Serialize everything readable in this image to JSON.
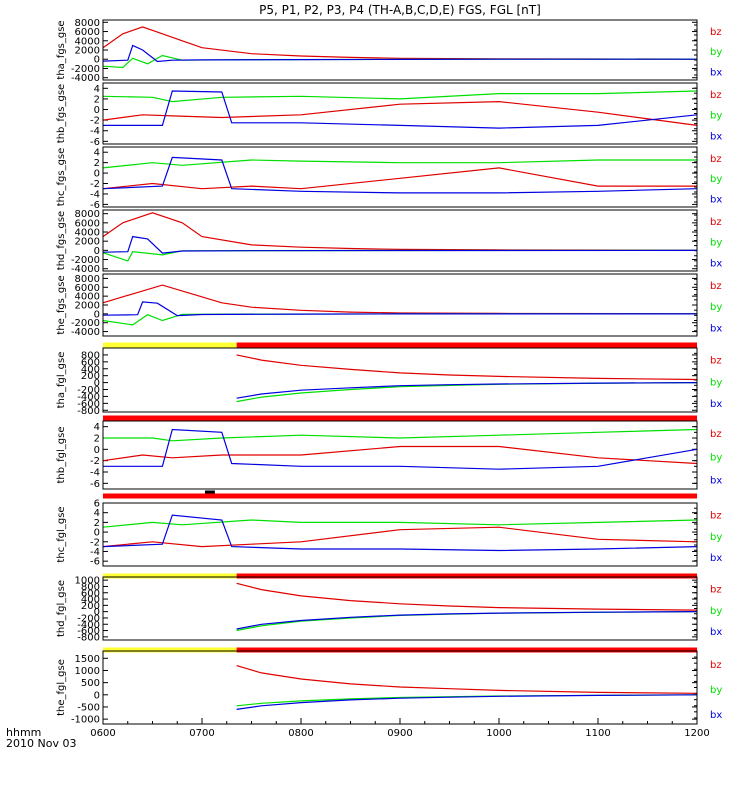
{
  "title": "P5, P1, P2, P3, P4 (TH-A,B,C,D,E) FGS, FGL [nT]",
  "x_axis": {
    "label_line1": "hhmm",
    "label_line2": "2010 Nov 03",
    "tick_labels": [
      "0600",
      "0700",
      "0800",
      "0900",
      "1000",
      "1100",
      "1200"
    ]
  },
  "colors": {
    "bz": "#e00000",
    "by": "#00e000",
    "bx": "#0000e0",
    "bar_yellow": "#ffff33",
    "bar_red": "#ff0000",
    "bar_black": "#000000"
  },
  "chart_data": [
    {
      "type": "line",
      "ylabel": "tha_fgs_gse",
      "ylim": [
        -4500,
        8500
      ],
      "yticks": [
        -4000,
        -2000,
        0,
        2000,
        4000,
        6000,
        8000
      ],
      "ytick_labels": [
        "-4000",
        "-2000",
        "0",
        "2000",
        "4000",
        "6000",
        "8000"
      ],
      "legend": [
        "bz",
        "by",
        "bx"
      ],
      "series": [
        {
          "name": "bz",
          "x": [
            6.0,
            6.2,
            6.4,
            6.6,
            6.8,
            7.0,
            7.5,
            8.0,
            8.5,
            9.0,
            10.0,
            11.0,
            12.0
          ],
          "y": [
            2500,
            5500,
            7000,
            5500,
            4000,
            2500,
            1200,
            700,
            400,
            200,
            100,
            50,
            20
          ]
        },
        {
          "name": "by",
          "x": [
            6.0,
            6.2,
            6.3,
            6.45,
            6.6,
            6.8,
            7.5,
            9.0,
            10.0,
            12.0
          ],
          "y": [
            -1500,
            -1800,
            200,
            -1000,
            800,
            -200,
            -80,
            -30,
            0,
            30
          ]
        },
        {
          "name": "bx",
          "x": [
            6.0,
            6.25,
            6.3,
            6.4,
            6.55,
            6.7,
            7.0,
            8.0,
            9.0,
            10.0,
            12.0
          ],
          "y": [
            -400,
            -200,
            3000,
            2000,
            -500,
            -200,
            -150,
            -80,
            -40,
            0,
            0
          ]
        }
      ]
    },
    {
      "type": "line",
      "ylabel": "thb_fgs_gse",
      "ylim": [
        -6.5,
        5
      ],
      "yticks": [
        -6,
        -4,
        -2,
        0,
        2,
        4
      ],
      "ytick_labels": [
        "-6",
        "-4",
        "-2",
        "0",
        "2",
        "4"
      ],
      "legend": [
        "bz",
        "by",
        "bx"
      ],
      "series": [
        {
          "name": "by",
          "x": [
            6.0,
            6.5,
            6.7,
            7.2,
            8.0,
            9.0,
            10.0,
            11.0,
            12.0
          ],
          "y": [
            2.5,
            2.3,
            1.5,
            2.3,
            2.5,
            2.0,
            3.0,
            3.0,
            3.5
          ]
        },
        {
          "name": "bz",
          "x": [
            6.0,
            6.4,
            6.7,
            7.2,
            8.0,
            9.0,
            10.0,
            11.0,
            12.0
          ],
          "y": [
            -2.0,
            -1.0,
            -1.2,
            -1.5,
            -1.0,
            1.0,
            1.5,
            -0.5,
            -3.0
          ]
        },
        {
          "name": "bx",
          "x": [
            6.0,
            6.6,
            6.7,
            7.2,
            7.3,
            8.0,
            9.0,
            10.0,
            11.0,
            12.0
          ],
          "y": [
            -3.0,
            -3.0,
            3.5,
            3.3,
            -2.5,
            -2.5,
            -3.0,
            -3.5,
            -3.0,
            -1.0
          ]
        }
      ]
    },
    {
      "type": "line",
      "ylabel": "thc_fgs_gse",
      "ylim": [
        -6.5,
        5
      ],
      "yticks": [
        -6,
        -4,
        -2,
        0,
        2,
        4
      ],
      "ytick_labels": [
        "-6",
        "-4",
        "-2",
        "0",
        "2",
        "4"
      ],
      "legend": [
        "bz",
        "by",
        "bx"
      ],
      "series": [
        {
          "name": "by",
          "x": [
            6.0,
            6.5,
            6.8,
            7.5,
            8.0,
            9.0,
            10.0,
            11.0,
            12.0
          ],
          "y": [
            1.0,
            2.0,
            1.5,
            2.5,
            2.3,
            2.0,
            2.0,
            2.5,
            2.5
          ]
        },
        {
          "name": "bz",
          "x": [
            6.0,
            6.5,
            7.0,
            7.5,
            8.0,
            9.0,
            10.0,
            11.0,
            12.0
          ],
          "y": [
            -3.0,
            -2.0,
            -3.0,
            -2.5,
            -3.0,
            -1.0,
            1.0,
            -2.5,
            -2.5
          ]
        },
        {
          "name": "bx",
          "x": [
            6.0,
            6.6,
            6.7,
            7.2,
            7.3,
            8.0,
            9.0,
            10.0,
            11.0,
            12.0
          ],
          "y": [
            -3.0,
            -2.5,
            3.0,
            2.5,
            -3.0,
            -3.5,
            -3.8,
            -3.8,
            -3.5,
            -3.0
          ]
        }
      ]
    },
    {
      "type": "line",
      "ylabel": "thd_fgs_gse",
      "ylim": [
        -4500,
        8800
      ],
      "yticks": [
        -4000,
        -2000,
        0,
        2000,
        4000,
        6000,
        8000
      ],
      "ytick_labels": [
        "-4000",
        "-2000",
        "0",
        "2000",
        "4000",
        "6000",
        "8000"
      ],
      "legend": [
        "bz",
        "by",
        "bx"
      ],
      "series": [
        {
          "name": "bz",
          "x": [
            6.0,
            6.2,
            6.5,
            6.8,
            7.0,
            7.5,
            8.0,
            8.5,
            9.0,
            10.0,
            12.0
          ],
          "y": [
            3000,
            6000,
            8200,
            6000,
            3000,
            1200,
            700,
            400,
            200,
            100,
            30
          ]
        },
        {
          "name": "by",
          "x": [
            6.0,
            6.25,
            6.3,
            6.6,
            6.8,
            7.5,
            9.0,
            12.0
          ],
          "y": [
            -500,
            -2300,
            -300,
            -1000,
            -100,
            -60,
            -20,
            20
          ]
        },
        {
          "name": "bx",
          "x": [
            6.0,
            6.25,
            6.3,
            6.45,
            6.6,
            6.8,
            7.5,
            9.0,
            12.0
          ],
          "y": [
            -400,
            -300,
            3000,
            2500,
            -600,
            -150,
            -80,
            -30,
            0
          ]
        }
      ]
    },
    {
      "type": "line",
      "ylabel": "the_fgs_gse",
      "ylim": [
        -5000,
        9000
      ],
      "yticks": [
        -4000,
        -2000,
        0,
        2000,
        4000,
        6000,
        8000
      ],
      "ytick_labels": [
        "-4000",
        "-2000",
        "0",
        "2000",
        "4000",
        "6000",
        "8000"
      ],
      "legend": [
        "bz",
        "by",
        "bx"
      ],
      "series": [
        {
          "name": "bz",
          "x": [
            6.0,
            6.3,
            6.6,
            6.9,
            7.2,
            7.5,
            8.0,
            8.5,
            9.0,
            10.0,
            12.0
          ],
          "y": [
            2500,
            4500,
            6500,
            4500,
            2500,
            1500,
            800,
            400,
            200,
            100,
            30
          ]
        },
        {
          "name": "by",
          "x": [
            6.0,
            6.3,
            6.45,
            6.6,
            6.8,
            7.5,
            9.0,
            12.0
          ],
          "y": [
            -1500,
            -2500,
            -200,
            -1500,
            -100,
            -60,
            -20,
            20
          ]
        },
        {
          "name": "bx",
          "x": [
            6.0,
            6.35,
            6.4,
            6.55,
            6.75,
            7.0,
            8.0,
            9.0,
            12.0
          ],
          "y": [
            -300,
            -200,
            2700,
            2400,
            -400,
            -150,
            -50,
            -20,
            0
          ]
        }
      ]
    },
    {
      "type": "line",
      "ylabel": "tha_fgl_gse",
      "ylim": [
        -850,
        1000
      ],
      "yticks": [
        -800,
        -600,
        -400,
        -200,
        0,
        200,
        400,
        600,
        800
      ],
      "ytick_labels": [
        "-800",
        "-600",
        "-400",
        "-200",
        "0",
        "200",
        "400",
        "600",
        "800"
      ],
      "legend": [
        "bz",
        "by",
        "bx"
      ],
      "series": [
        {
          "name": "bz",
          "x": [
            7.35,
            7.6,
            8.0,
            8.5,
            9.0,
            9.5,
            10.0,
            11.0,
            12.0
          ],
          "y": [
            800,
            650,
            500,
            380,
            280,
            220,
            180,
            120,
            90
          ]
        },
        {
          "name": "by",
          "x": [
            7.35,
            7.6,
            8.0,
            8.5,
            9.0,
            9.5,
            10.0,
            11.0,
            12.0
          ],
          "y": [
            -550,
            -420,
            -300,
            -200,
            -120,
            -80,
            -50,
            -20,
            0
          ]
        },
        {
          "name": "bx",
          "x": [
            7.35,
            7.6,
            8.0,
            8.5,
            9.0,
            9.5,
            10.0,
            11.0,
            12.0
          ],
          "y": [
            -450,
            -330,
            -220,
            -150,
            -90,
            -60,
            -40,
            -15,
            0
          ]
        }
      ]
    },
    {
      "type": "line",
      "ylabel": "thb_fgl_gse",
      "ylim": [
        -7,
        5
      ],
      "yticks": [
        -6,
        -4,
        -2,
        0,
        2,
        4
      ],
      "ytick_labels": [
        "-6",
        "-4",
        "-2",
        "0",
        "2",
        "4"
      ],
      "legend": [
        "bz",
        "by",
        "bx"
      ],
      "series": [
        {
          "name": "by",
          "x": [
            6.0,
            6.5,
            6.7,
            7.2,
            8.0,
            9.0,
            10.0,
            11.0,
            12.0
          ],
          "y": [
            2.0,
            2.0,
            1.5,
            2.0,
            2.5,
            2.0,
            2.5,
            3.0,
            3.5
          ]
        },
        {
          "name": "bz",
          "x": [
            6.0,
            6.4,
            6.7,
            7.2,
            8.0,
            9.0,
            10.0,
            11.0,
            12.0
          ],
          "y": [
            -2.0,
            -1.0,
            -1.5,
            -1.0,
            -1.0,
            0.5,
            0.5,
            -1.5,
            -2.5
          ]
        },
        {
          "name": "bx",
          "x": [
            6.0,
            6.6,
            6.7,
            7.2,
            7.3,
            8.0,
            9.0,
            10.0,
            11.0,
            12.0
          ],
          "y": [
            -3.0,
            -3.0,
            3.5,
            3.0,
            -2.5,
            -3.0,
            -3.0,
            -3.5,
            -3.0,
            0.0
          ]
        }
      ]
    },
    {
      "type": "line",
      "ylabel": "thc_fgl_gse",
      "ylim": [
        -7,
        6
      ],
      "yticks": [
        -6,
        -4,
        -2,
        0,
        2,
        4,
        6
      ],
      "ytick_labels": [
        "-6",
        "-4",
        "-2",
        "0",
        "2",
        "4",
        "6"
      ],
      "legend": [
        "bz",
        "by",
        "bx"
      ],
      "series": [
        {
          "name": "by",
          "x": [
            6.0,
            6.5,
            6.8,
            7.5,
            8.0,
            9.0,
            10.0,
            11.0,
            12.0
          ],
          "y": [
            1.0,
            2.0,
            1.5,
            2.5,
            2.0,
            2.0,
            1.5,
            2.0,
            2.5
          ]
        },
        {
          "name": "bz",
          "x": [
            6.0,
            6.5,
            7.0,
            7.5,
            8.0,
            9.0,
            10.0,
            11.0,
            12.0
          ],
          "y": [
            -3.0,
            -2.0,
            -3.0,
            -2.5,
            -2.0,
            0.5,
            1.0,
            -1.5,
            -2.0
          ]
        },
        {
          "name": "bx",
          "x": [
            6.0,
            6.6,
            6.7,
            7.2,
            7.3,
            8.0,
            9.0,
            10.0,
            11.0,
            12.0
          ],
          "y": [
            -3.0,
            -2.5,
            3.5,
            2.5,
            -3.0,
            -3.5,
            -3.5,
            -3.8,
            -3.5,
            -3.0
          ]
        }
      ]
    },
    {
      "type": "line",
      "ylabel": "thd_fgl_gse",
      "ylim": [
        -900,
        1100
      ],
      "yticks": [
        -800,
        -600,
        -400,
        -200,
        0,
        200,
        400,
        600,
        800,
        1000
      ],
      "ytick_labels": [
        "-800",
        "-600",
        "-400",
        "-200",
        "0",
        "200",
        "400",
        "600",
        "800",
        "1000"
      ],
      "legend": [
        "bz",
        "by",
        "bx"
      ],
      "series": [
        {
          "name": "bz",
          "x": [
            7.35,
            7.6,
            8.0,
            8.5,
            9.0,
            9.5,
            10.0,
            11.0,
            12.0
          ],
          "y": [
            900,
            700,
            500,
            350,
            250,
            180,
            130,
            80,
            50
          ]
        },
        {
          "name": "by",
          "x": [
            7.35,
            7.6,
            8.0,
            8.5,
            9.0,
            9.5,
            10.0,
            11.0,
            12.0
          ],
          "y": [
            -600,
            -450,
            -300,
            -200,
            -120,
            -80,
            -50,
            -20,
            0
          ]
        },
        {
          "name": "bx",
          "x": [
            7.35,
            7.6,
            8.0,
            8.5,
            9.0,
            9.5,
            10.0,
            11.0,
            12.0
          ],
          "y": [
            -550,
            -400,
            -280,
            -180,
            -110,
            -70,
            -45,
            -18,
            0
          ]
        }
      ]
    },
    {
      "type": "line",
      "ylabel": "the_fgl_gse",
      "ylim": [
        -1200,
        1800
      ],
      "yticks": [
        -1000,
        -500,
        0,
        500,
        1000,
        1500
      ],
      "ytick_labels": [
        "-1000",
        "-500",
        "0",
        "500",
        "1000",
        "1500"
      ],
      "legend": [
        "bz",
        "by",
        "bx"
      ],
      "series": [
        {
          "name": "bz",
          "x": [
            7.35,
            7.6,
            8.0,
            8.5,
            9.0,
            9.5,
            10.0,
            11.0,
            12.0
          ],
          "y": [
            1200,
            900,
            650,
            450,
            320,
            250,
            180,
            100,
            60
          ]
        },
        {
          "name": "by",
          "x": [
            7.35,
            7.6,
            8.0,
            8.5,
            9.0,
            9.5,
            10.0,
            11.0,
            12.0
          ],
          "y": [
            -450,
            -350,
            -250,
            -170,
            -110,
            -80,
            -50,
            -20,
            0
          ]
        },
        {
          "name": "bx",
          "x": [
            7.35,
            7.6,
            8.0,
            8.5,
            9.0,
            9.5,
            10.0,
            11.0,
            12.0
          ],
          "y": [
            -600,
            -450,
            -320,
            -210,
            -140,
            -100,
            -60,
            -25,
            0
          ]
        }
      ]
    }
  ],
  "mode_bars": [
    {
      "segments": [
        {
          "from": 6.0,
          "to": 7.35,
          "color": "bar_yellow"
        },
        {
          "from": 7.35,
          "to": 12.0,
          "color": "bar_red"
        }
      ]
    },
    {
      "segments": [
        {
          "from": 6.0,
          "to": 12.0,
          "color": "bar_red"
        }
      ]
    },
    {
      "segments": [
        {
          "from": 6.0,
          "to": 12.0,
          "color": "bar_red"
        }
      ],
      "marker": {
        "from": 7.03,
        "to": 7.13,
        "color": "bar_black"
      }
    },
    {
      "segments": [
        {
          "from": 6.0,
          "to": 7.35,
          "color": "bar_yellow"
        },
        {
          "from": 7.35,
          "to": 12.0,
          "color": "bar_red"
        }
      ]
    },
    {
      "segments": [
        {
          "from": 6.0,
          "to": 7.35,
          "color": "bar_yellow"
        },
        {
          "from": 7.35,
          "to": 12.0,
          "color": "bar_red"
        }
      ]
    }
  ]
}
